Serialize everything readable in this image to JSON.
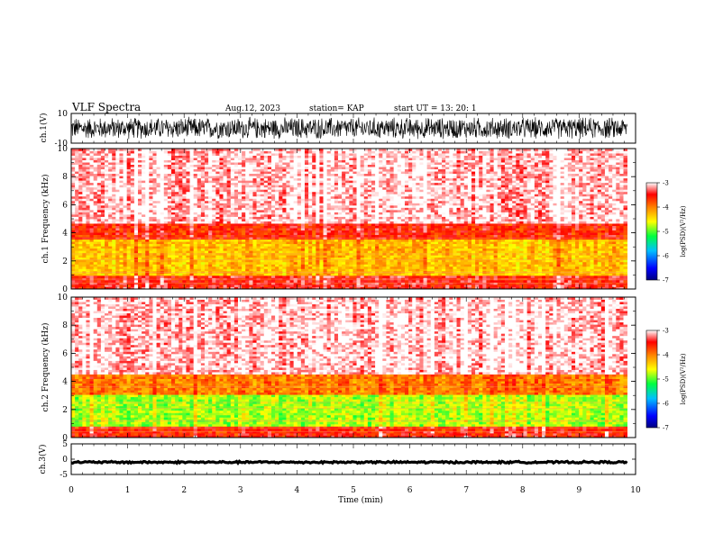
{
  "header": {
    "title": "VLF Spectra",
    "date": "Aug.12, 2023",
    "station": "station= KAP",
    "start": "start UT = 13: 20: 1"
  },
  "chart_data": [
    {
      "type": "line",
      "name": "waveform-ch1",
      "ylabel": "ch.1(V)",
      "ylim": [
        -10,
        10
      ],
      "y_ticks": [
        "10",
        "-10"
      ],
      "xlim": [
        0,
        10
      ],
      "trace": "dense oscillating waveform filling roughly -8 to +8 V over 0 to 9.85 min"
    },
    {
      "type": "heatmap",
      "name": "spectrogram-ch1",
      "ylabel": "ch.1 Frequency (kHz)",
      "ylim": [
        0,
        10
      ],
      "y_ticks": [
        "0",
        "2",
        "4",
        "6",
        "8",
        "10"
      ],
      "xlim": [
        0,
        10
      ],
      "data_end_min": 9.85,
      "bands": [
        {
          "f_min": 0.0,
          "f_max": 1.0,
          "level": "-3.5"
        },
        {
          "f_min": 1.0,
          "f_max": 3.5,
          "level": "-4.3"
        },
        {
          "f_min": 3.5,
          "f_max": 4.7,
          "level": "-3.6"
        },
        {
          "f_min": 4.7,
          "f_max": 10.0,
          "level": "-3.1"
        }
      ],
      "colorbar": {
        "label": "log(PSD)(V²/Hz)",
        "ticks": [
          "-3",
          "-4",
          "-5",
          "-6",
          "-7"
        ],
        "range": [
          -7,
          -3
        ]
      }
    },
    {
      "type": "heatmap",
      "name": "spectrogram-ch2",
      "ylabel": "ch.2 Frequency (kHz)",
      "ylim": [
        0,
        10
      ],
      "y_ticks": [
        "0",
        "2",
        "4",
        "6",
        "8",
        "10"
      ],
      "xlim": [
        0,
        10
      ],
      "data_end_min": 9.85,
      "bands": [
        {
          "f_min": 0.0,
          "f_max": 0.8,
          "level": "-3.6"
        },
        {
          "f_min": 0.8,
          "f_max": 3.0,
          "level": "-4.8"
        },
        {
          "f_min": 3.0,
          "f_max": 4.5,
          "level": "-4.0"
        },
        {
          "f_min": 4.5,
          "f_max": 10.0,
          "level": "-3.1"
        }
      ],
      "colorbar": {
        "label": "log(PSD)(V²/Hz)",
        "ticks": [
          "-3",
          "-4",
          "-5",
          "-6",
          "-7"
        ],
        "range": [
          -7,
          -3
        ]
      }
    },
    {
      "type": "line",
      "name": "waveform-ch3",
      "ylabel": "ch.3(V)",
      "ylim": [
        -5,
        5
      ],
      "y_ticks": [
        "5",
        "0",
        "-5"
      ],
      "xlim": [
        0,
        10
      ],
      "trace": "near-constant band around -1 V over 0 to 9.85 min",
      "xlabel": "Time (min)",
      "x_ticks": [
        "0",
        "1",
        "2",
        "3",
        "4",
        "5",
        "6",
        "7",
        "8",
        "9",
        "10"
      ]
    }
  ]
}
